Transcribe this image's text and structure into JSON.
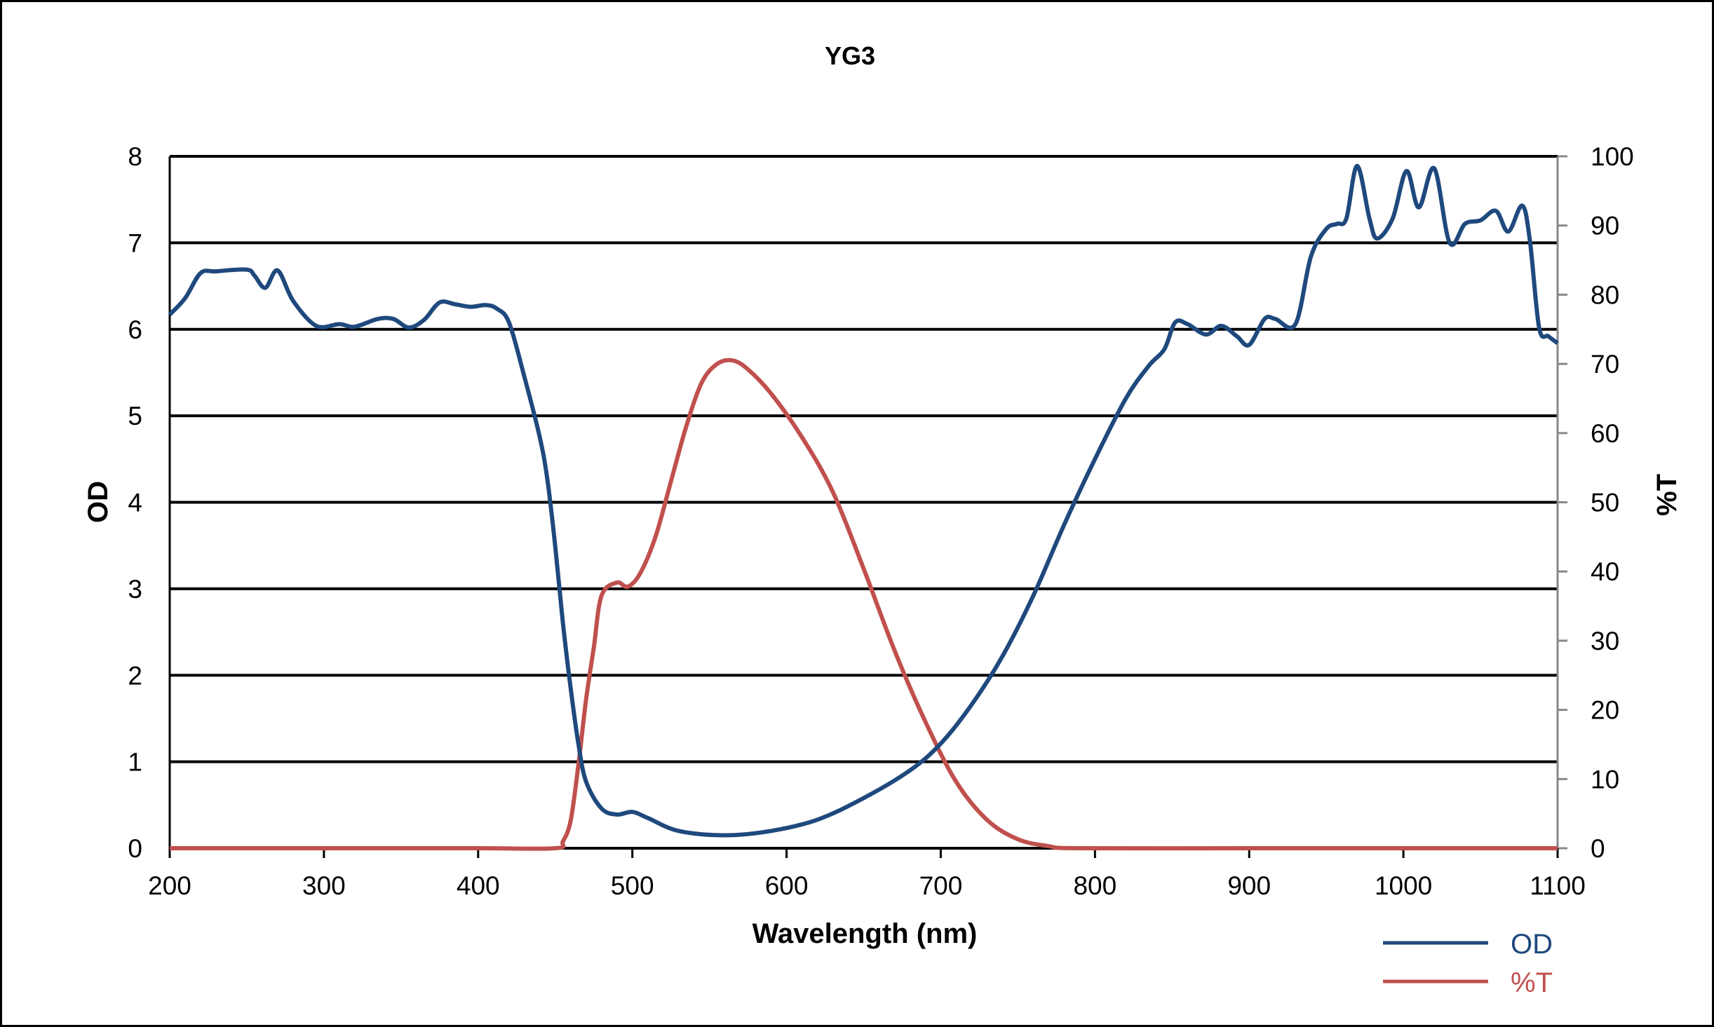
{
  "chart_data": {
    "type": "line",
    "title": "YG3",
    "xlabel": "Wavelength (nm)",
    "ylabel": "OD",
    "y2label": "%T",
    "xlim": [
      200,
      1100
    ],
    "ylim": [
      0,
      8
    ],
    "y2lim": [
      0,
      100
    ],
    "xticks": [
      "200",
      "300",
      "400",
      "500",
      "600",
      "700",
      "800",
      "900",
      "1000",
      "1100"
    ],
    "yticks": [
      "0",
      "1",
      "2",
      "3",
      "4",
      "5",
      "6",
      "7",
      "8"
    ],
    "y2ticks": [
      "0",
      "10",
      "20",
      "30",
      "40",
      "50",
      "60",
      "70",
      "80",
      "90",
      "100"
    ],
    "grid": true,
    "legend": "bottom-right",
    "series": [
      {
        "name": "OD",
        "axis": "left",
        "color": "#1F497D",
        "x": [
          200,
          210,
          220,
          230,
          250,
          255,
          262,
          270,
          280,
          295,
          310,
          320,
          335,
          345,
          355,
          365,
          375,
          385,
          395,
          405,
          412,
          420,
          430,
          440,
          445,
          450,
          455,
          460,
          465,
          470,
          480,
          490,
          500,
          510,
          530,
          560,
          590,
          620,
          650,
          680,
          700,
          720,
          740,
          760,
          780,
          800,
          820,
          835,
          845,
          852,
          860,
          872,
          882,
          892,
          900,
          910,
          917,
          930,
          940,
          950,
          957,
          963,
          970,
          978,
          983,
          993,
          1002,
          1010,
          1020,
          1030,
          1040,
          1050,
          1060,
          1068,
          1077,
          1082,
          1088,
          1094,
          1100
        ],
        "y": [
          6.17,
          6.36,
          6.65,
          6.67,
          6.69,
          6.62,
          6.48,
          6.68,
          6.33,
          6.04,
          6.06,
          6.03,
          6.12,
          6.12,
          6.02,
          6.11,
          6.31,
          6.29,
          6.26,
          6.28,
          6.24,
          6.08,
          5.45,
          4.75,
          4.25,
          3.49,
          2.6,
          1.85,
          1.21,
          0.77,
          0.46,
          0.39,
          0.42,
          0.35,
          0.2,
          0.15,
          0.2,
          0.33,
          0.58,
          0.9,
          1.21,
          1.66,
          2.22,
          2.92,
          3.74,
          4.5,
          5.2,
          5.58,
          5.77,
          6.08,
          6.06,
          5.94,
          6.04,
          5.92,
          5.82,
          6.12,
          6.12,
          6.06,
          6.84,
          7.16,
          7.22,
          7.28,
          7.89,
          7.28,
          7.05,
          7.28,
          7.83,
          7.41,
          7.86,
          7.0,
          7.22,
          7.26,
          7.37,
          7.13,
          7.43,
          7.03,
          6.02,
          5.92,
          5.84
        ]
      },
      {
        "name": "%T",
        "axis": "right",
        "color": "#C0504D",
        "x": [
          200,
          300,
          400,
          450,
          455,
          460,
          465,
          470,
          475,
          480,
          490,
          497,
          505,
          515,
          525,
          535,
          545,
          555,
          565,
          575,
          590,
          610,
          630,
          650,
          670,
          690,
          710,
          730,
          750,
          770,
          790,
          900,
          1000,
          1100
        ],
        "y": [
          0,
          0,
          0,
          0,
          1,
          4,
          12,
          21.5,
          29,
          36.5,
          38.4,
          37.8,
          39.7,
          45,
          53,
          61,
          67.3,
          70,
          70.5,
          69.2,
          65.7,
          59.4,
          51.5,
          40.4,
          28.6,
          18.3,
          9.6,
          4.1,
          1.3,
          0.3,
          0,
          0,
          0,
          0
        ]
      }
    ]
  }
}
